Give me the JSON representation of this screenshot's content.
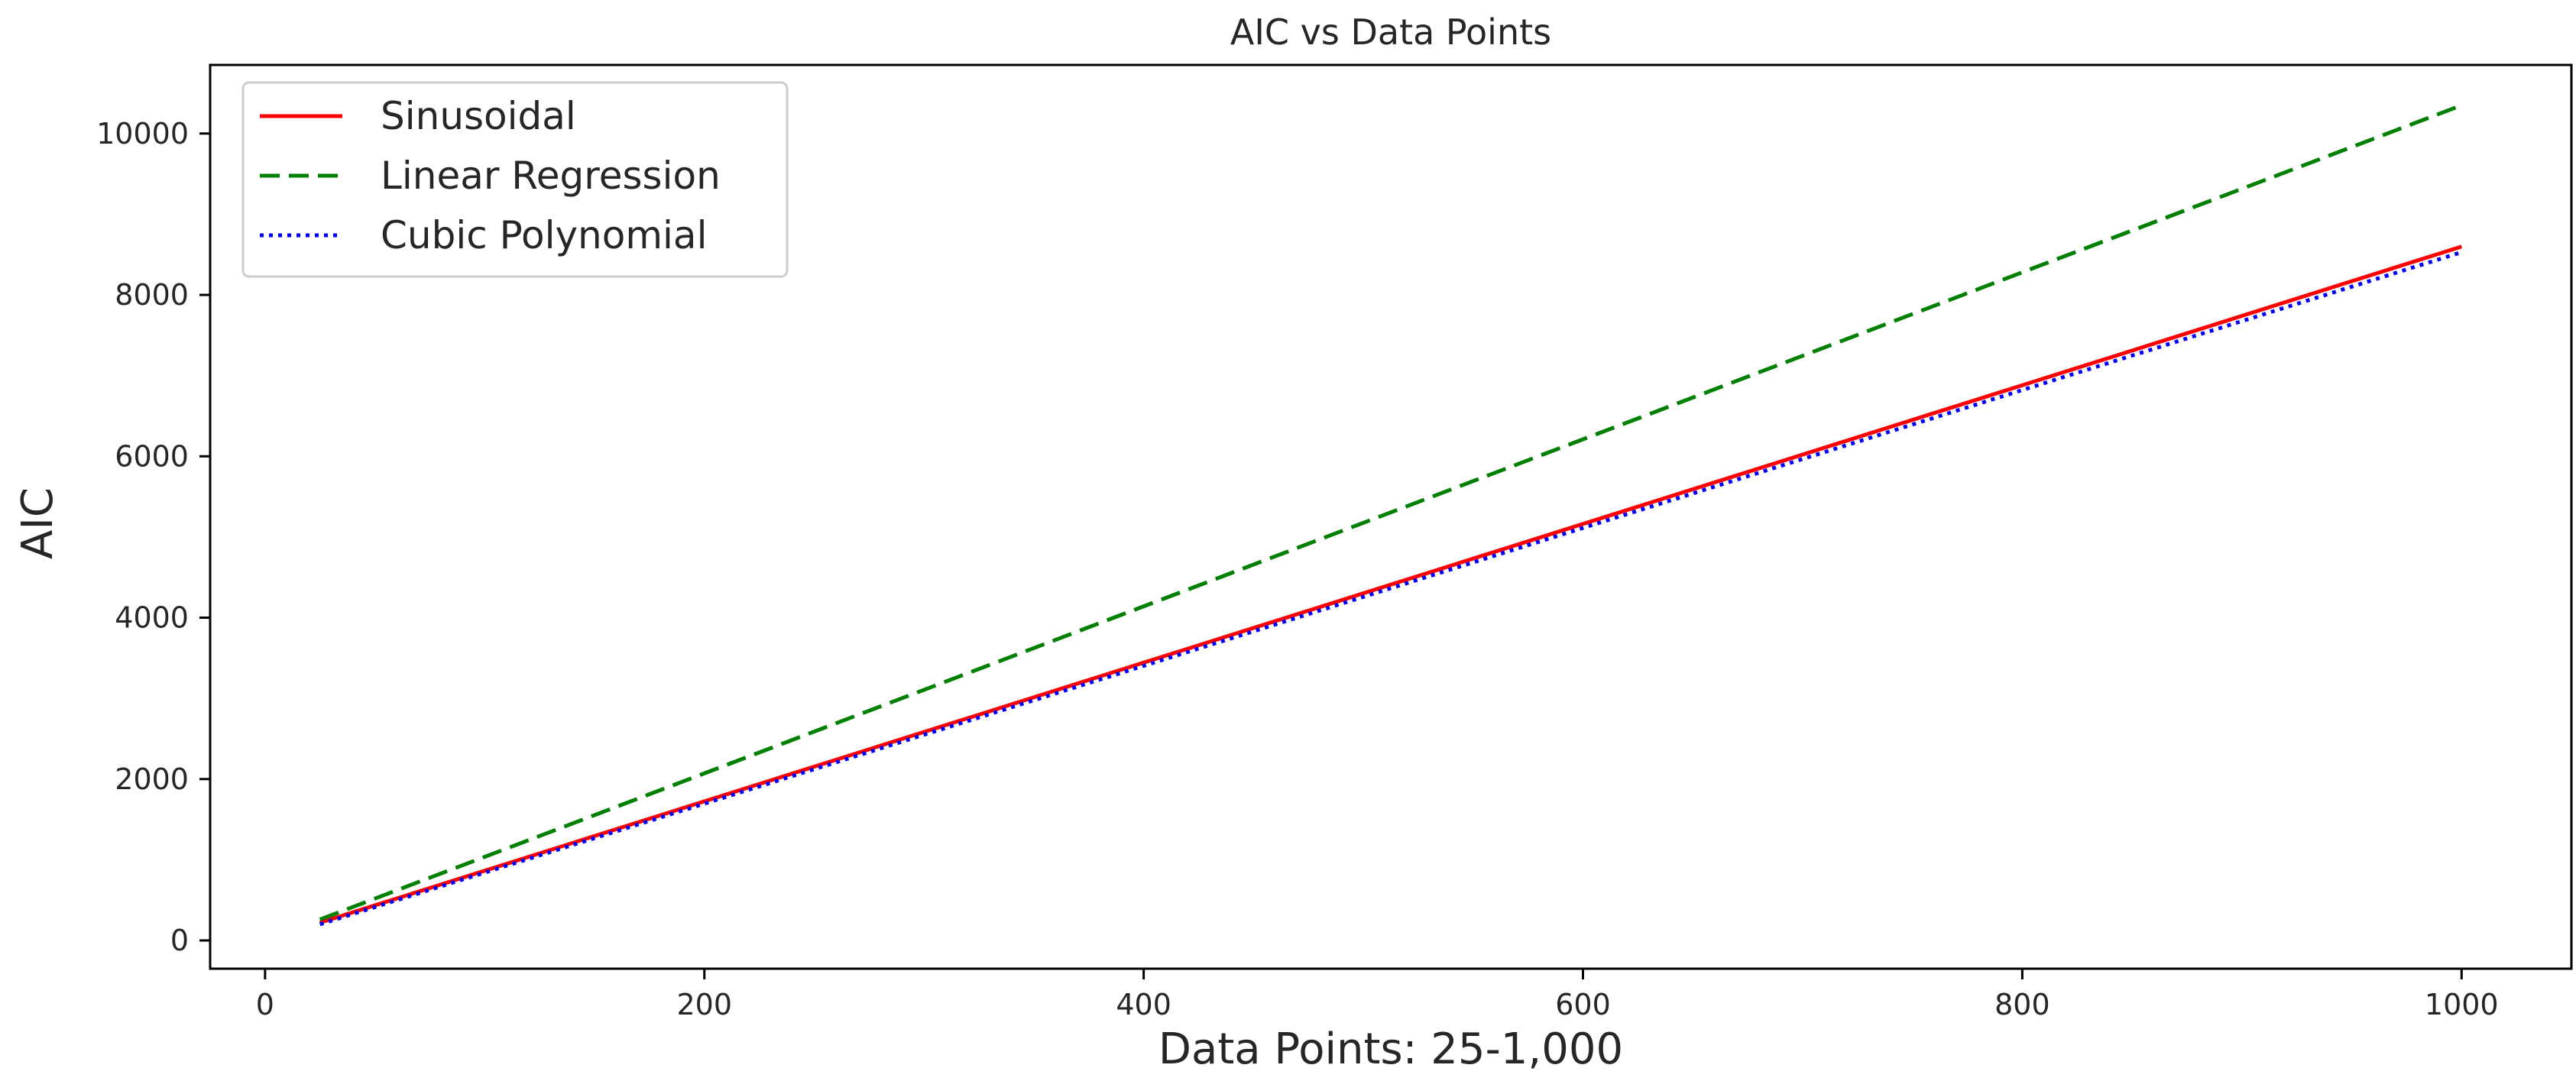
{
  "chart_data": {
    "type": "line",
    "title": "AIC vs Data Points",
    "xlabel": "Data Points: 25-1,000",
    "ylabel": "AIC",
    "xlim": [
      -25,
      1050
    ],
    "ylim": [
      -350,
      10850
    ],
    "xticks": [
      0,
      200,
      400,
      600,
      800,
      1000
    ],
    "yticks": [
      0,
      2000,
      4000,
      6000,
      8000,
      10000
    ],
    "grid": false,
    "legend": "top-left",
    "series": [
      {
        "name": "Sinusoidal",
        "color": "#ff0000",
        "style": "solid",
        "x": [
          25,
          1000
        ],
        "y": [
          220,
          8600
        ]
      },
      {
        "name": "Linear Regression",
        "color": "#008000",
        "style": "dashed",
        "x": [
          25,
          1000
        ],
        "y": [
          260,
          10350
        ]
      },
      {
        "name": "Cubic Polynomial",
        "color": "#0000ff",
        "style": "dotted",
        "x": [
          25,
          1000
        ],
        "y": [
          200,
          8530
        ]
      }
    ]
  }
}
